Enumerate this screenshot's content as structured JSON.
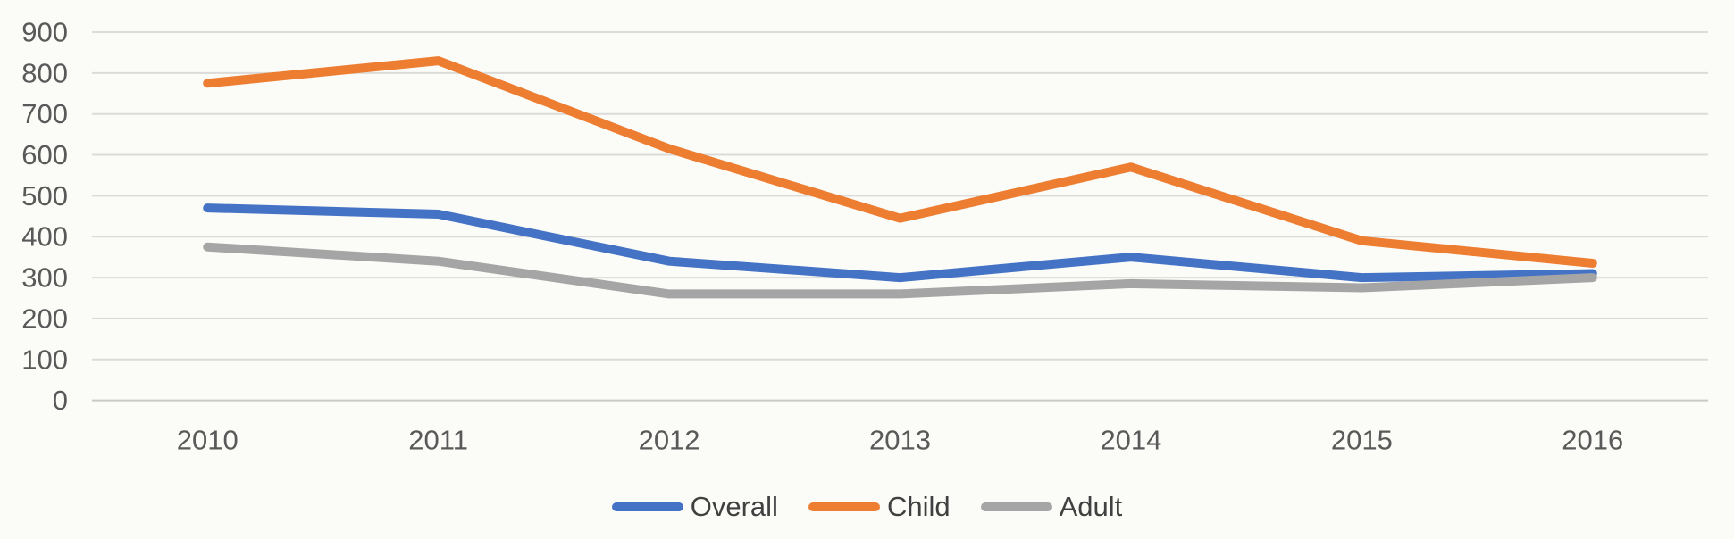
{
  "chart_data": {
    "type": "line",
    "title": "",
    "xlabel": "",
    "ylabel": "",
    "categories": [
      "2010",
      "2011",
      "2012",
      "2013",
      "2014",
      "2015",
      "2016"
    ],
    "series": [
      {
        "name": "Overall",
        "color": "#4472C4",
        "values": [
          470,
          455,
          340,
          300,
          350,
          300,
          310
        ]
      },
      {
        "name": "Child",
        "color": "#ED7D31",
        "values": [
          775,
          830,
          615,
          445,
          570,
          390,
          335
        ]
      },
      {
        "name": "Adult",
        "color": "#A5A5A5",
        "values": [
          375,
          340,
          260,
          260,
          285,
          275,
          300
        ]
      }
    ],
    "ylim": [
      0,
      900
    ],
    "ytick_step": 100,
    "yticks": [
      0,
      100,
      200,
      300,
      400,
      500,
      600,
      700,
      800,
      900
    ],
    "grid": "horizontal",
    "legend_position": "bottom"
  },
  "colors": {
    "background": "#FBFBF8",
    "gridline": "#DBDBD9",
    "axis_line": "#C9C9C7",
    "tick_text": "#595959",
    "legend_text": "#404040"
  }
}
